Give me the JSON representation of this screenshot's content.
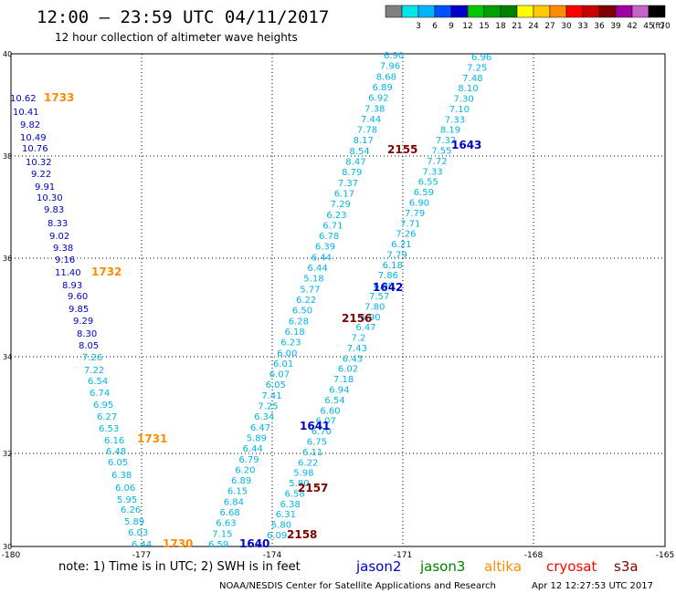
{
  "header": {
    "title": "12:00 – 23:59 UTC 04/11/2017",
    "subtitle": "12 hour collection of altimeter wave heights"
  },
  "legend_scale": {
    "unit": "(ft)",
    "bins": [
      {
        "label": "",
        "color": "#808080"
      },
      {
        "label": "3",
        "color": "#00e5e5"
      },
      {
        "label": "6",
        "color": "#00b4ff"
      },
      {
        "label": "9",
        "color": "#0050ff"
      },
      {
        "label": "12",
        "color": "#0000c8"
      },
      {
        "label": "15",
        "color": "#00c800"
      },
      {
        "label": "18",
        "color": "#00a000"
      },
      {
        "label": "21",
        "color": "#008000"
      },
      {
        "label": "24",
        "color": "#ffff00"
      },
      {
        "label": "27",
        "color": "#ffc800"
      },
      {
        "label": "30",
        "color": "#ff8c00"
      },
      {
        "label": "33",
        "color": "#ff0000"
      },
      {
        "label": "36",
        "color": "#c80000"
      },
      {
        "label": "39",
        "color": "#800000"
      },
      {
        "label": "42",
        "color": "#a000a0"
      },
      {
        "label": "45",
        "color": "#c864c8"
      },
      {
        "label": "70",
        "color": "#000000"
      }
    ]
  },
  "axes": {
    "x_ticks": [
      "-180",
      "-177",
      "-174",
      "-171",
      "-168",
      "-165"
    ],
    "y_ticks": [
      "40",
      "38",
      "36",
      "34",
      "32",
      "30"
    ]
  },
  "colors": {
    "jason2": "#0000c8",
    "jason3": "#008000",
    "altika": "#ff8c00",
    "cryosat": "#ff0000",
    "s3a": "#800000",
    "swh_light": "#00b4e6",
    "swh_dark": "#0000c8"
  },
  "tracks": {
    "altika_left": {
      "values": [
        "10.62",
        "10.41",
        "9.82",
        "10.49",
        "10.76",
        "10.32",
        "9.22",
        "9.91",
        "10.30",
        "9.83",
        "8.33",
        "9.02",
        "9.38",
        "9.16",
        "11.40",
        "8.93",
        "9.60",
        "9.85",
        "9.29",
        "8.30",
        "8.05",
        "7.26",
        "7.22",
        "6.54",
        "6.74",
        "6.95",
        "6.27",
        "6.53",
        "6.16",
        "6.48",
        "6.05",
        "6.38",
        "6.06",
        "5.95",
        "6.26",
        "5.89",
        "6.03",
        "6.44"
      ],
      "time_labels": [
        "1733",
        "1732",
        "1731",
        "1730"
      ]
    },
    "s3a_track": {
      "values": [
        "6.90",
        "7.96",
        "8.68",
        "6.89",
        "6.92",
        "7.38",
        "7.44",
        "7.78",
        "8.17",
        "8.54",
        "8.47",
        "8.79",
        "7.37",
        "6.17",
        "7.29",
        "6.23",
        "6.71",
        "6.78",
        "6.39",
        "6.44",
        "6.44",
        "5.18",
        "5.77",
        "6.22",
        "6.50",
        "6.28",
        "6.18",
        "6.23",
        "6.00",
        "6.01",
        "6.07",
        "6.05",
        "7.41",
        "7.25",
        "6.34",
        "6.47",
        "5.89",
        "6.44",
        "6.79",
        "6.20",
        "6.89",
        "6.15",
        "6.84",
        "6.68",
        "6.63",
        "7.15",
        "6.59"
      ],
      "time_labels": [
        "2155",
        "2156",
        "2157",
        "2158"
      ]
    },
    "jason2_track": {
      "values": [
        "6.96",
        "7.25",
        "7.48",
        "8.10",
        "7.30",
        "7.10",
        "7.33",
        "8.19",
        "7.32",
        "7.55",
        "7.72",
        "7.33",
        "6.55",
        "6.59",
        "6.90",
        "7.79",
        "7.71",
        "7.26",
        "6.21",
        "7.79",
        "6.18",
        "7.86",
        "6.90",
        "7.57",
        "7.80",
        "6.90",
        "6.47",
        "7.2",
        "7.43",
        "6.43",
        "6.02",
        "7.18",
        "6.94",
        "6.54",
        "6.60",
        "6.07",
        "6.70",
        "6.75",
        "6.11",
        "6.22",
        "5.98",
        "5.80",
        "6.58",
        "6.38",
        "6.31",
        "5.80",
        "6.09"
      ],
      "time_labels": [
        "1643",
        "1642",
        "1641",
        "1640"
      ]
    }
  },
  "sat_legend": {
    "note": "note:  1) Time is in UTC;  2) SWH is in feet",
    "items": [
      {
        "label": "jason2",
        "color": "#0000c8"
      },
      {
        "label": "jason3",
        "color": "#008000"
      },
      {
        "label": "altika",
        "color": "#ff8c00"
      },
      {
        "label": "cryosat",
        "color": "#ff0000"
      },
      {
        "label": "s3a",
        "color": "#800000"
      }
    ]
  },
  "footer": {
    "credit": "NOAA/NESDIS Center for Satellite Applications and Research",
    "timestamp": "Apr 12 12:27:53 UTC 2017"
  }
}
